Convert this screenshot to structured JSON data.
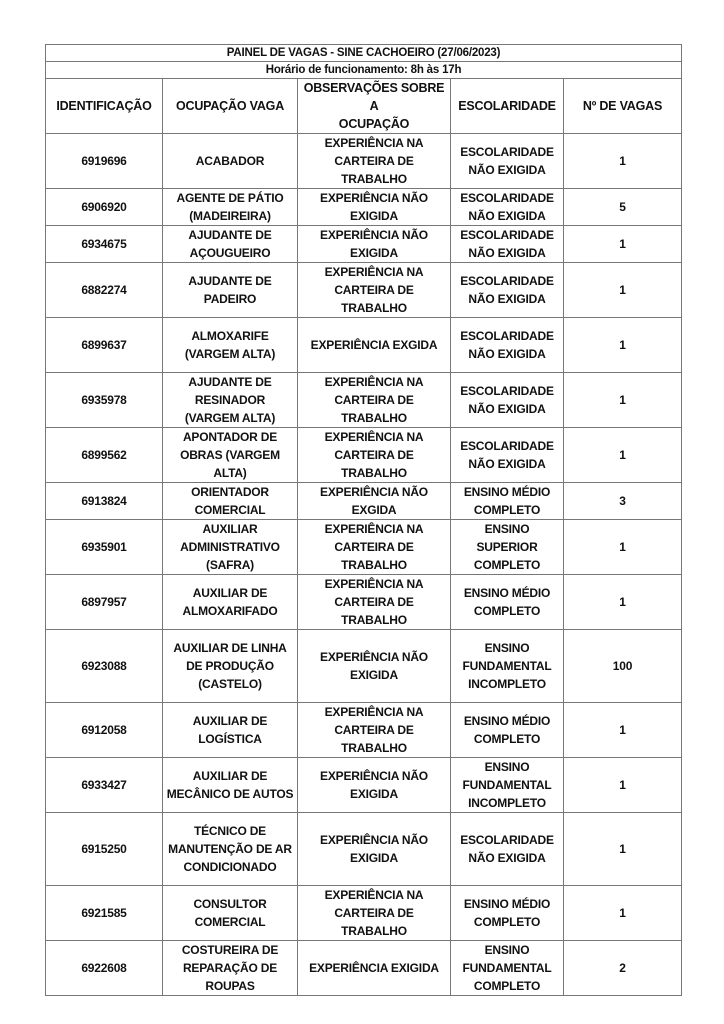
{
  "title": "PAINEL DE VAGAS - SINE CACHOEIRO (27/06/2023)",
  "hours": "Horário de funcionamento: 8h às 17h",
  "columns": [
    "IDENTIFICAÇÃO",
    "OCUPAÇÃO VAGA",
    "OBSERVAÇÕES SOBRE A\nOCUPAÇÃO",
    "ESCOLARIDADE",
    "Nº DE VAGAS"
  ],
  "rows": [
    {
      "id": "6919696",
      "ocupacao": "ACABADOR",
      "obs": "EXPERIÊNCIA NA\nCARTEIRA DE\nTRABALHO",
      "escolaridade": "ESCOLARIDADE\nNÃO EXIGIDA",
      "vagas": "1"
    },
    {
      "id": "6906920",
      "ocupacao": "AGENTE DE PÁTIO\n(MADEIREIRA)",
      "obs": "EXPERIÊNCIA NÃO\nEXIGIDA",
      "escolaridade": "ESCOLARIDADE\nNÃO EXIGIDA",
      "vagas": "5"
    },
    {
      "id": "6934675",
      "ocupacao": "AJUDANTE DE\nAÇOUGUEIRO",
      "obs": "EXPERIÊNCIA NÃO\nEXIGIDA",
      "escolaridade": "ESCOLARIDADE\nNÃO EXIGIDA",
      "vagas": "1"
    },
    {
      "id": "6882274",
      "ocupacao": "AJUDANTE DE\nPADEIRO",
      "obs": "EXPERIÊNCIA NA\nCARTEIRA DE\nTRABALHO",
      "escolaridade": "ESCOLARIDADE\nNÃO EXIGIDA",
      "vagas": "1"
    },
    {
      "id": "6899637",
      "ocupacao": "ALMOXARIFE\n(VARGEM ALTA)",
      "obs": "EXPERIÊNCIA EXGIDA",
      "escolaridade": "ESCOLARIDADE\nNÃO EXIGIDA",
      "vagas": "1"
    },
    {
      "id": "6935978",
      "ocupacao": "AJUDANTE DE\nRESINADOR\n(VARGEM ALTA)",
      "obs": "EXPERIÊNCIA NA\nCARTEIRA DE\nTRABALHO",
      "escolaridade": "ESCOLARIDADE\nNÃO EXIGIDA",
      "vagas": "1"
    },
    {
      "id": "6899562",
      "ocupacao": "APONTADOR DE\nOBRAS (VARGEM\nALTA)",
      "obs": "EXPERIÊNCIA NA\nCARTEIRA DE\nTRABALHO",
      "escolaridade": "ESCOLARIDADE\nNÃO EXIGIDA",
      "vagas": "1"
    },
    {
      "id": "6913824",
      "ocupacao": "ORIENTADOR\nCOMERCIAL",
      "obs": "EXPERIÊNCIA NÃO\nEXGIDA",
      "escolaridade": "ENSINO MÉDIO\nCOMPLETO",
      "vagas": "3"
    },
    {
      "id": "6935901",
      "ocupacao": "AUXILIAR\nADMINISTRATIVO\n(SAFRA)",
      "obs": "EXPERIÊNCIA NA\nCARTEIRA DE\nTRABALHO",
      "escolaridade": "ENSINO SUPERIOR\nCOMPLETO",
      "vagas": "1"
    },
    {
      "id": "6897957",
      "ocupacao": "AUXILIAR DE\nALMOXARIFADO",
      "obs": "EXPERIÊNCIA NA\nCARTEIRA DE\nTRABALHO",
      "escolaridade": "ENSINO MÉDIO\nCOMPLETO",
      "vagas": "1"
    },
    {
      "id": "6923088",
      "ocupacao": "AUXILIAR DE LINHA\nDE PRODUÇÃO\n(CASTELO)",
      "obs": "EXPERIÊNCIA NÃO\nEXIGIDA",
      "escolaridade": "ENSINO\nFUNDAMENTAL\nINCOMPLETO",
      "vagas": "100"
    },
    {
      "id": "6912058",
      "ocupacao": "AUXILIAR DE\nLOGÍSTICA",
      "obs": "EXPERIÊNCIA NA\nCARTEIRA DE\nTRABALHO",
      "escolaridade": "ENSINO MÉDIO\nCOMPLETO",
      "vagas": "1"
    },
    {
      "id": "6933427",
      "ocupacao": "AUXILIAR DE\nMECÂNICO DE AUTOS",
      "obs": "EXPERIÊNCIA NÃO\nEXIGIDA",
      "escolaridade": "ENSINO\nFUNDAMENTAL\nINCOMPLETO",
      "vagas": "1"
    },
    {
      "id": "6915250",
      "ocupacao": "TÉCNICO DE\nMANUTENÇÃO DE AR\nCONDICIONADO",
      "obs": "EXPERIÊNCIA NÃO\nEXIGIDA",
      "escolaridade": "ESCOLARIDADE\nNÃO EXIGIDA",
      "vagas": "1"
    },
    {
      "id": "6921585",
      "ocupacao": "CONSULTOR\nCOMERCIAL",
      "obs": "EXPERIÊNCIA NA\nCARTEIRA DE\nTRABALHO",
      "escolaridade": "ENSINO MÉDIO\nCOMPLETO",
      "vagas": "1"
    },
    {
      "id": "6922608",
      "ocupacao": "COSTUREIRA DE\nREPARAÇÃO DE\nROUPAS",
      "obs": "EXPERIÊNCIA EXIGIDA",
      "escolaridade": "ENSINO\nFUNDAMENTAL\nCOMPLETO",
      "vagas": "2"
    }
  ]
}
